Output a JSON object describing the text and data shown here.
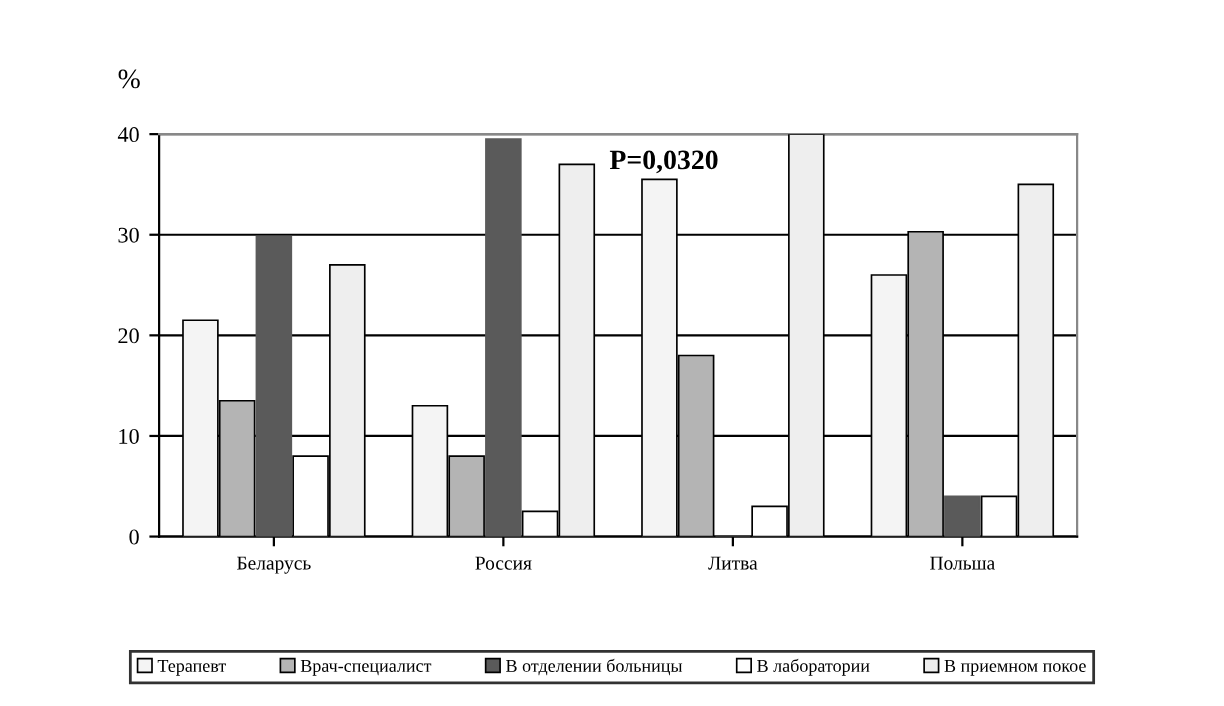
{
  "chart_data": {
    "type": "bar",
    "ylabel": "%",
    "categories": [
      "Беларусь",
      "Россия",
      "Литва",
      "Польша"
    ],
    "series": [
      {
        "name": "Терапевт",
        "color": "#f4f4f4",
        "values": [
          21.5,
          13,
          35.5,
          26
        ]
      },
      {
        "name": "Врач-специалист",
        "color": "#b4b4b4",
        "values": [
          13.5,
          8,
          18,
          30.3
        ]
      },
      {
        "name": "В отделении больницы",
        "color": "#5a5a5a",
        "values": [
          29.8,
          39.5,
          0,
          4
        ]
      },
      {
        "name": "В лаборатории",
        "color": "#ffffff",
        "values": [
          8,
          2.5,
          3,
          4
        ]
      },
      {
        "name": "В приемном покое",
        "color": "#eeeeee",
        "values": [
          27,
          37,
          40,
          35
        ]
      }
    ],
    "ylim": [
      0,
      40
    ],
    "yticks": [
      0,
      10,
      20,
      30,
      40
    ],
    "grid": "y",
    "legend": "bottom",
    "annotations": [
      "P=0,0320"
    ]
  }
}
